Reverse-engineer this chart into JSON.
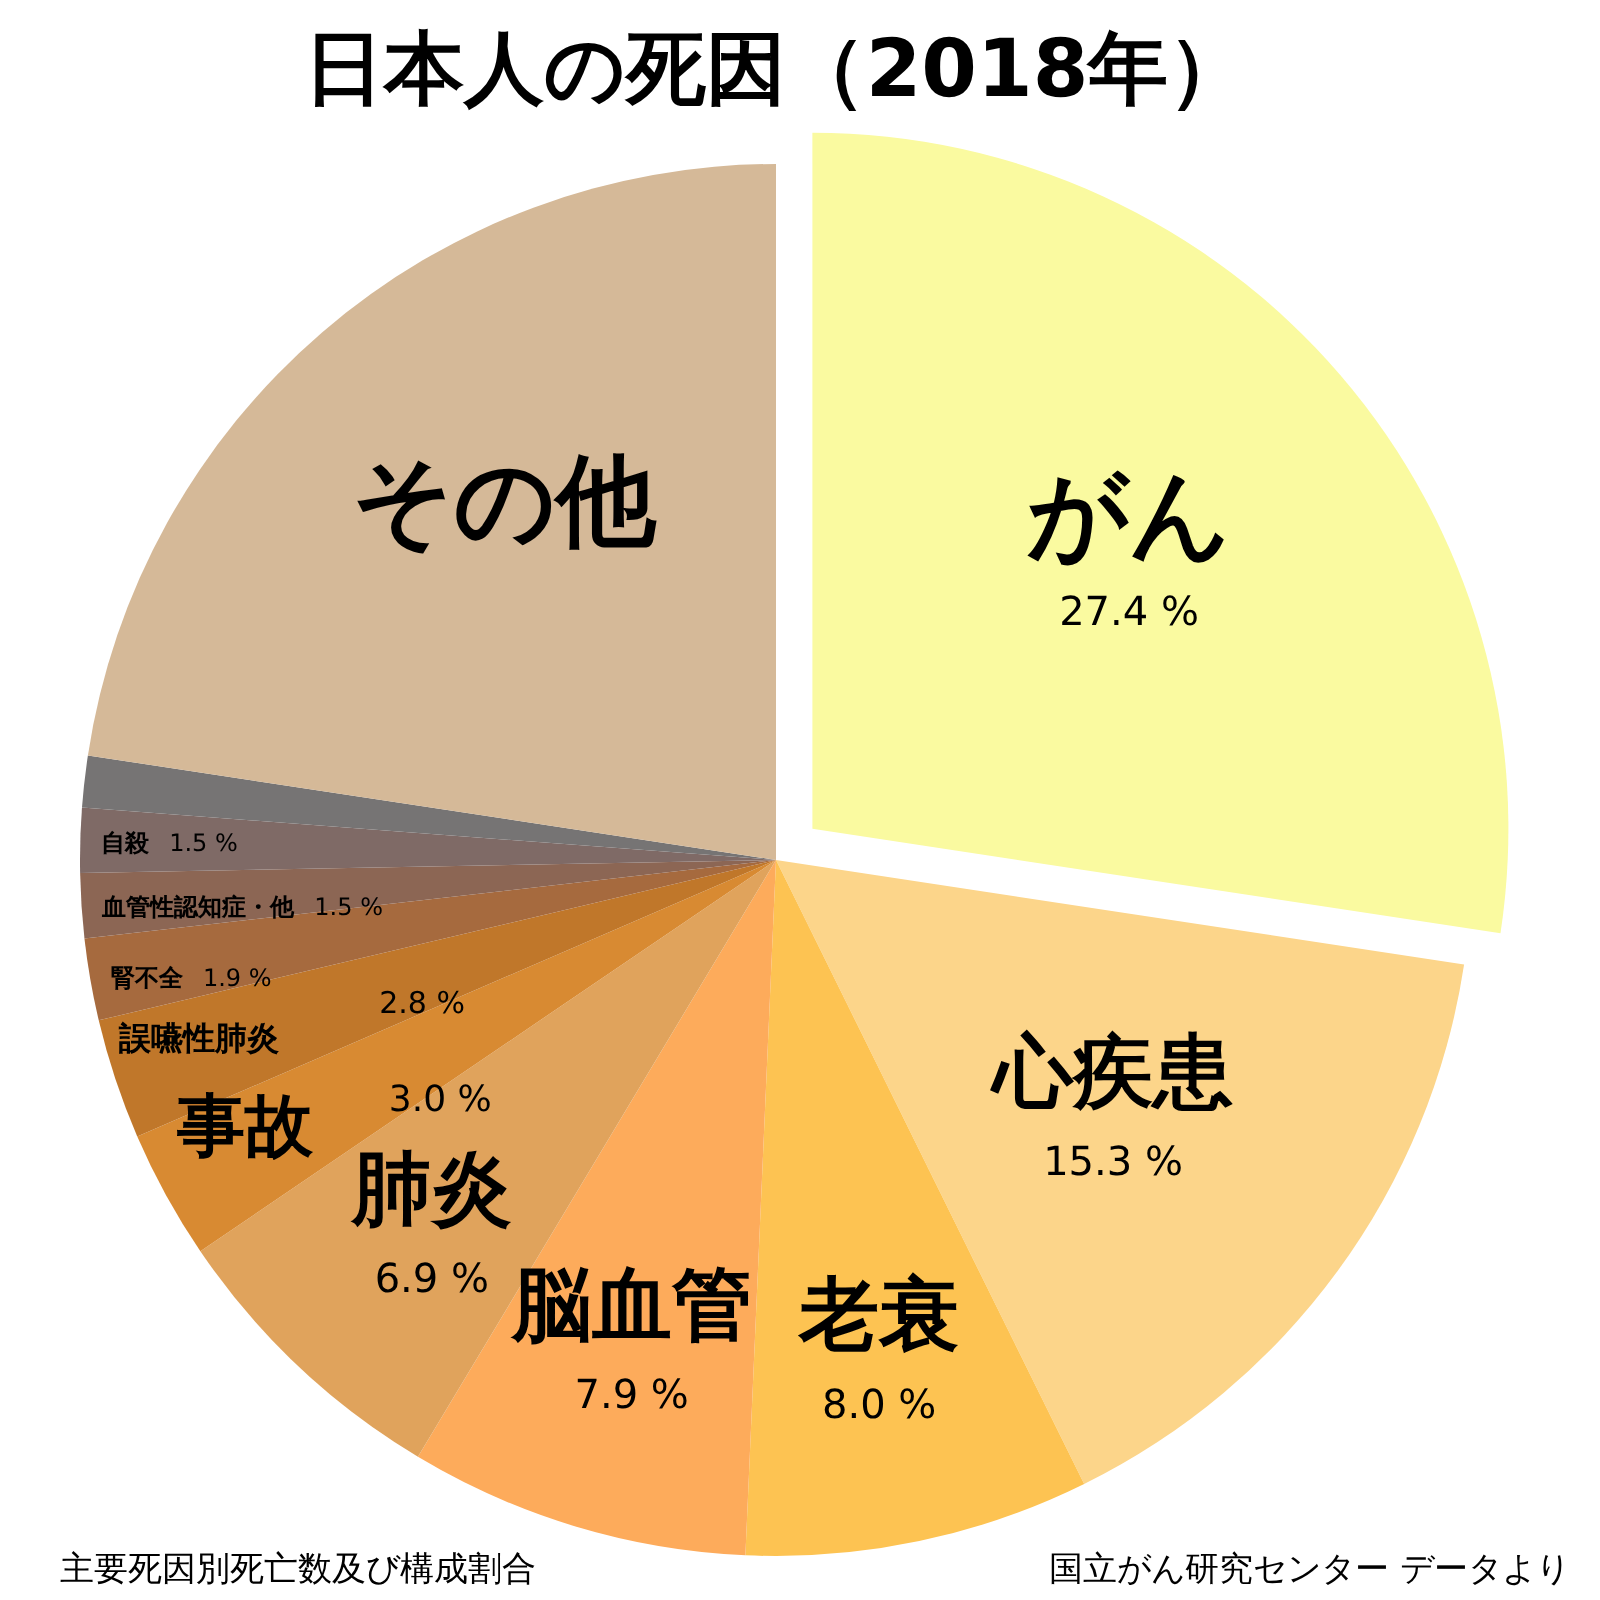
{
  "chart_data": {
    "type": "pie",
    "title": "日本人の死因（2018年）",
    "categories": [
      "がん",
      "心疾患",
      "老衰",
      "脳血管",
      "肺炎",
      "事故",
      "誤嚥性肺炎",
      "腎不全",
      "血管性認知症・他",
      "自殺",
      null,
      "その他"
    ],
    "values": [
      27.4,
      15.3,
      8.0,
      7.9,
      6.9,
      3.0,
      2.8,
      1.9,
      1.5,
      1.5,
      1.2,
      22.6
    ],
    "value_labels": [
      "27.4 %",
      "15.3 %",
      "8.0 %",
      "7.9 %",
      "6.9 %",
      "3.0 %",
      "2.8 %",
      "1.9 %",
      "1.5 %",
      "1.5 %",
      null,
      null
    ],
    "colors": [
      "#fafaa0",
      "#fcd58a",
      "#fdc352",
      "#fdab5b",
      "#e0a35c",
      "#d88a32",
      "#c0772a",
      "#a66a3e",
      "#8c6654",
      "#7f6a66",
      "#767474",
      "#d5b998"
    ],
    "annotations": [
      "主要死因別死亡数及び構成割合",
      "国立がん研究センター データより"
    ]
  }
}
